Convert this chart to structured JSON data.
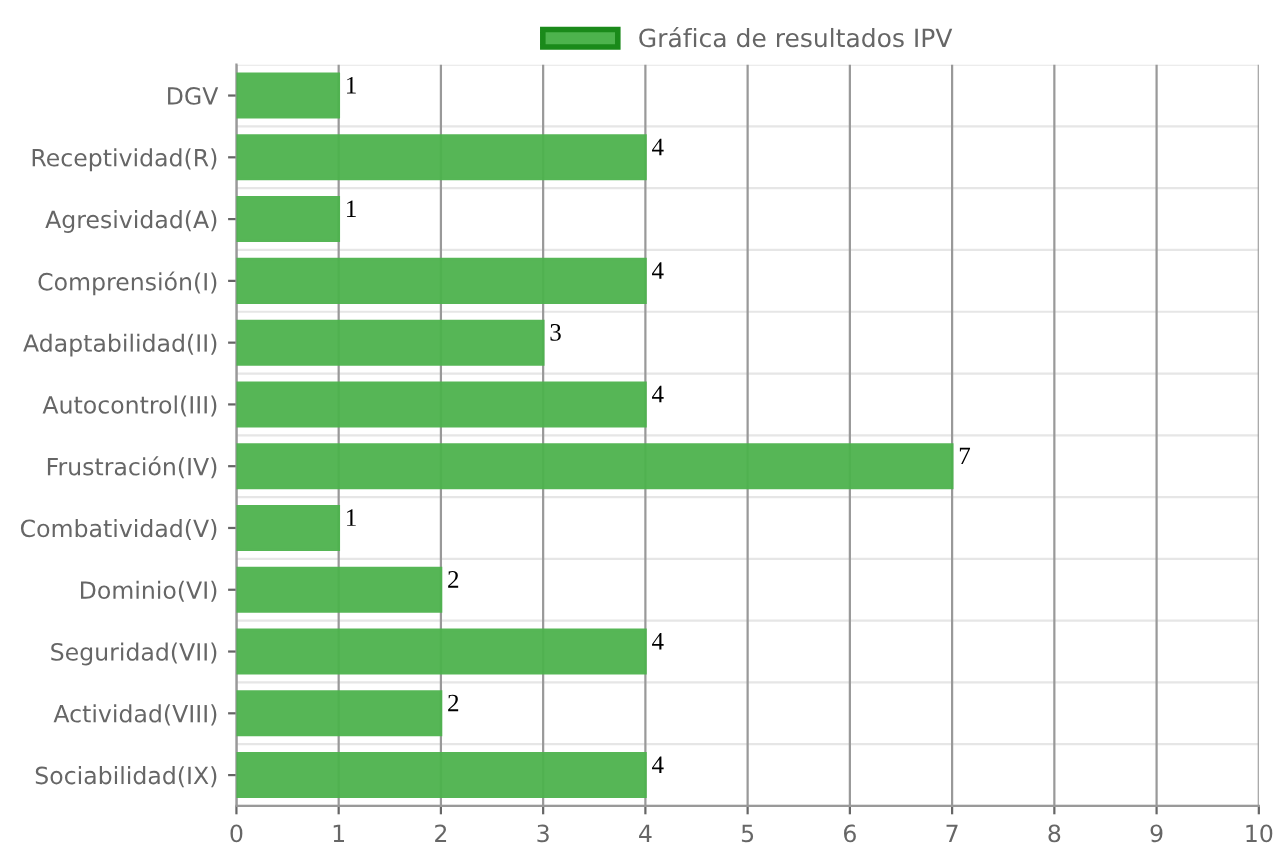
{
  "chart_data": {
    "type": "bar",
    "orientation": "horizontal",
    "categories": [
      "DGV",
      "Receptividad(R)",
      "Agresividad(A)",
      "Comprensión(I)",
      "Adaptabilidad(II)",
      "Autocontrol(III)",
      "Frustración(IV)",
      "Combatividad(V)",
      "Dominio(VI)",
      "Seguridad(VII)",
      "Actividad(VIII)",
      "Sociabilidad(IX)"
    ],
    "series": [
      {
        "name": "Gráfica de resultados IPV",
        "color": "#4db34d",
        "values": [
          1,
          4,
          1,
          4,
          3,
          4,
          7,
          1,
          2,
          4,
          2,
          4
        ]
      }
    ],
    "xlim": [
      0,
      10
    ],
    "xticks": [
      0,
      1,
      2,
      3,
      4,
      5,
      6,
      7,
      8,
      9,
      10
    ],
    "grid": true,
    "legend": "top",
    "data_labels": true
  }
}
